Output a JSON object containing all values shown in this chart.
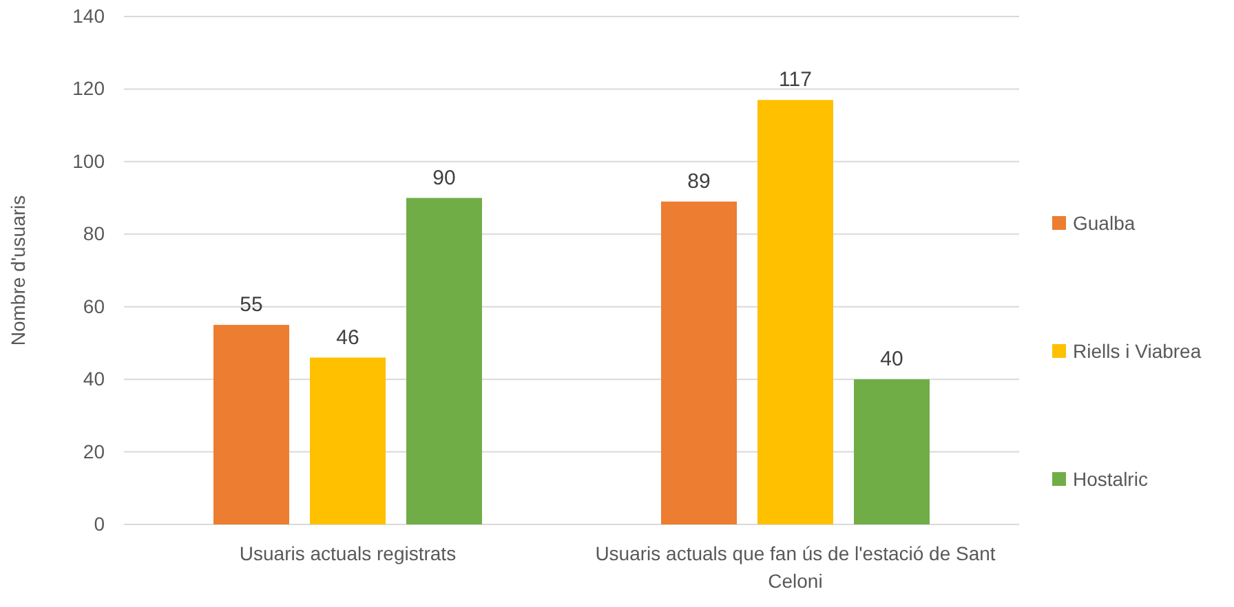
{
  "chart_data": {
    "type": "bar",
    "ylabel": "Nombre d'usuaris",
    "categories": [
      "Usuaris actuals registrats",
      "Usuaris actuals que fan ús de l'estació de Sant Celoni"
    ],
    "series": [
      {
        "name": "Gualba",
        "color": "#ed7d31",
        "values": [
          55,
          89
        ]
      },
      {
        "name": "Riells i Viabrea",
        "color": "#ffc000",
        "values": [
          46,
          117
        ]
      },
      {
        "name": "Hostalric",
        "color": "#70ad47",
        "values": [
          90,
          40
        ]
      }
    ],
    "ylim": [
      0,
      140
    ],
    "yticks": [
      0,
      20,
      40,
      60,
      80,
      100,
      120,
      140
    ],
    "grid": "y",
    "legend": "right",
    "data_labels": true
  }
}
